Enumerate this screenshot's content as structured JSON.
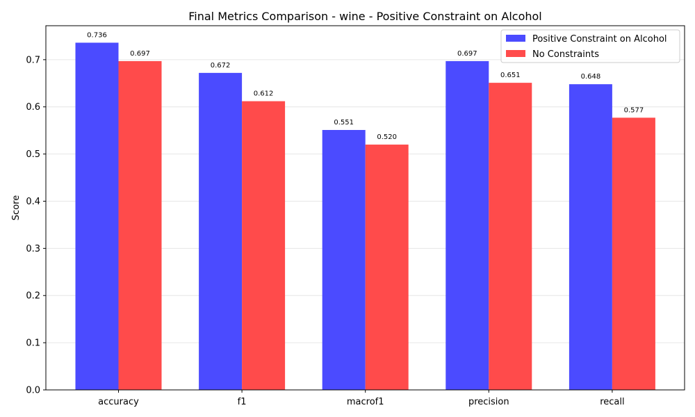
{
  "chart_data": {
    "type": "bar",
    "title": "Final Metrics Comparison - wine - Positive Constraint on Alcohol",
    "xlabel": "",
    "ylabel": "Score",
    "categories": [
      "accuracy",
      "f1",
      "macrof1",
      "precision",
      "recall"
    ],
    "ylim": [
      0,
      0.772
    ],
    "yticks": [
      0.0,
      0.1,
      0.2,
      0.3,
      0.4,
      0.5,
      0.6,
      0.7
    ],
    "ytick_labels": [
      "0.0",
      "0.1",
      "0.2",
      "0.3",
      "0.4",
      "0.5",
      "0.6",
      "0.7"
    ],
    "grid": "horizontal",
    "legend_position": "top-right",
    "series": [
      {
        "name": "Positive Constraint on Alcohol",
        "color": "#4b4bff",
        "values": [
          0.736,
          0.672,
          0.551,
          0.697,
          0.648
        ],
        "labels": [
          "0.736",
          "0.672",
          "0.551",
          "0.697",
          "0.648"
        ]
      },
      {
        "name": "No Constraints",
        "color": "#ff4b4b",
        "values": [
          0.697,
          0.612,
          0.52,
          0.651,
          0.577
        ],
        "labels": [
          "0.697",
          "0.612",
          "0.520",
          "0.651",
          "0.577"
        ]
      }
    ]
  }
}
